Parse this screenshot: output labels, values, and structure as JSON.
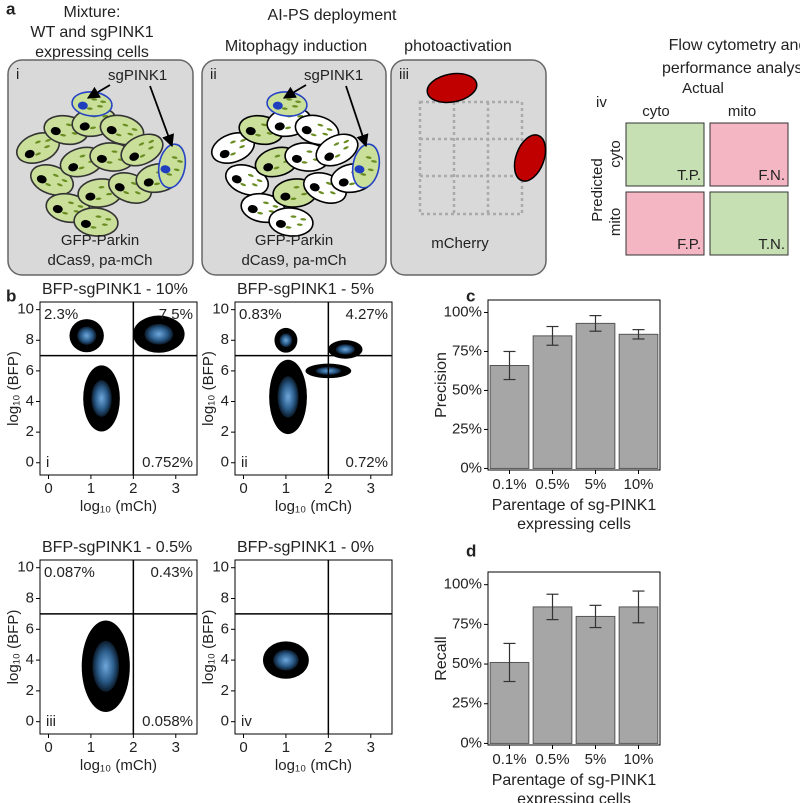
{
  "panel_labels": [
    "a",
    "b",
    "c",
    "d"
  ],
  "panel_a": {
    "title": "AI-PS deployment",
    "steps": [
      {
        "numeral": "i",
        "heading": [
          "Mixture:",
          "WT and sgPINK1",
          "expressing cells"
        ],
        "arrow_label": "sgPINK1",
        "captions": [
          "GFP-Parkin",
          "dCas9, pa-mCh"
        ]
      },
      {
        "numeral": "ii",
        "heading": [
          "Mitophagy induction"
        ],
        "arrow_label": "sgPINK1",
        "captions": [
          "GFP-Parkin",
          "dCas9, pa-mCh"
        ]
      },
      {
        "numeral": "iii",
        "heading": [
          "photoactivation"
        ],
        "captions": [
          "mCherry"
        ]
      },
      {
        "numeral": "iv",
        "heading": [
          "Flow cytometry and",
          "performance analysis"
        ]
      }
    ],
    "matrix": {
      "actual_label": "Actual",
      "predicted_label": "Predicted",
      "columns": [
        "cyto",
        "mito"
      ],
      "rows": [
        "cyto",
        "mito"
      ],
      "cells": [
        [
          "T.P.",
          "F.N."
        ],
        [
          "F.P.",
          "T.N."
        ]
      ]
    }
  },
  "chart_data": [
    {
      "type": "scatter",
      "title": "BFP-sgPINK1 - 10%",
      "xlabel": "log₁₀ (mCh)",
      "ylabel": "log₁₀ (BFP)",
      "xlim": [
        -0.2,
        3.5
      ],
      "ylim": [
        -0.8,
        10.5
      ],
      "xticks": [
        0,
        1,
        2,
        3
      ],
      "yticks": [
        0,
        2,
        4,
        6,
        8,
        10
      ],
      "gates": {
        "x": 2,
        "y": 7
      },
      "clusters": [
        {
          "x": 1.25,
          "y": 4.2,
          "sx": 0.32,
          "sy": 1.6
        },
        {
          "x": 0.9,
          "y": 8.3,
          "sx": 0.3,
          "sy": 0.8
        },
        {
          "x": 2.6,
          "y": 8.4,
          "sx": 0.45,
          "sy": 0.9
        }
      ],
      "annotations": [
        {
          "text": "2.3%",
          "quadrant": "upper-left"
        },
        {
          "text": "7.5%",
          "quadrant": "upper-right"
        },
        {
          "text": "0.752%",
          "quadrant": "lower-right"
        },
        {
          "text": "i",
          "quadrant": "lower-left"
        }
      ]
    },
    {
      "type": "scatter",
      "title": "BFP-sgPINK1 - 5%",
      "xlabel": "log₁₀ (mCh)",
      "ylabel": "log₁₀ (BFP)",
      "xlim": [
        -0.2,
        3.5
      ],
      "ylim": [
        -0.8,
        10.5
      ],
      "xticks": [
        0,
        1,
        2,
        3
      ],
      "yticks": [
        0,
        2,
        4,
        6,
        8,
        10
      ],
      "gates": {
        "x": 2,
        "y": 7
      },
      "clusters": [
        {
          "x": 1.05,
          "y": 4.3,
          "sx": 0.33,
          "sy": 1.8
        },
        {
          "x": 1.0,
          "y": 8.0,
          "sx": 0.2,
          "sy": 0.6
        },
        {
          "x": 2.4,
          "y": 7.4,
          "sx": 0.3,
          "sy": 0.45
        },
        {
          "x": 2.0,
          "y": 6.0,
          "sx": 0.4,
          "sy": 0.35
        }
      ],
      "annotations": [
        {
          "text": "0.83%",
          "quadrant": "upper-left"
        },
        {
          "text": "4.27%",
          "quadrant": "upper-right"
        },
        {
          "text": "0.72%",
          "quadrant": "lower-right"
        },
        {
          "text": "ii",
          "quadrant": "lower-left"
        }
      ]
    },
    {
      "type": "scatter",
      "title": "BFP-sgPINK1 - 0.5%",
      "xlabel": "log₁₀ (mCh)",
      "ylabel": "log₁₀ (BFP)",
      "xlim": [
        -0.2,
        3.5
      ],
      "ylim": [
        -0.8,
        10.5
      ],
      "xticks": [
        0,
        1,
        2,
        3
      ],
      "yticks": [
        0,
        2,
        4,
        6,
        8,
        10
      ],
      "gates": {
        "x": 2,
        "y": 7
      },
      "clusters": [
        {
          "x": 1.35,
          "y": 3.6,
          "sx": 0.42,
          "sy": 2.2
        }
      ],
      "annotations": [
        {
          "text": "0.087%",
          "quadrant": "upper-left"
        },
        {
          "text": "0.43%",
          "quadrant": "upper-right"
        },
        {
          "text": "0.058%",
          "quadrant": "lower-right"
        },
        {
          "text": "iii",
          "quadrant": "lower-left"
        }
      ]
    },
    {
      "type": "scatter",
      "title": "BFP-sgPINK1 - 0%",
      "xlabel": "log₁₀ (mCh)",
      "ylabel": "log₁₀ (BFP)",
      "xlim": [
        -0.2,
        3.5
      ],
      "ylim": [
        -0.8,
        10.5
      ],
      "xticks": [
        0,
        1,
        2,
        3
      ],
      "yticks": [
        0,
        2,
        4,
        6,
        8,
        10
      ],
      "gates": {
        "x": 2,
        "y": 7
      },
      "clusters": [
        {
          "x": 1.0,
          "y": 4.0,
          "sx": 0.4,
          "sy": 0.9
        }
      ],
      "annotations": [
        {
          "text": "iv",
          "quadrant": "lower-left"
        }
      ]
    },
    {
      "type": "bar",
      "ylabel": "Precision",
      "xlabel": [
        "Parentage of sg-PINK1",
        "expressing cells"
      ],
      "categories": [
        "0.1%",
        "0.5%",
        "5%",
        "10%"
      ],
      "values": [
        66,
        85,
        93,
        86
      ],
      "errors": [
        9,
        6,
        5,
        3
      ],
      "color": "#a6a6a6",
      "ylim": [
        -1,
        108
      ],
      "yticks": [
        {
          "value": 0,
          "label": "0%"
        },
        {
          "value": 25,
          "label": "25%"
        },
        {
          "value": 50,
          "label": "50%"
        },
        {
          "value": 75,
          "label": "75%"
        },
        {
          "value": 100,
          "label": "100%"
        }
      ]
    },
    {
      "type": "bar",
      "ylabel": "Recall",
      "xlabel": [
        "Parentage of sg-PINK1",
        "expressing cells"
      ],
      "categories": [
        "0.1%",
        "0.5%",
        "5%",
        "10%"
      ],
      "values": [
        51,
        86,
        80,
        86
      ],
      "errors": [
        12,
        8,
        7,
        10
      ],
      "color": "#a6a6a6",
      "ylim": [
        -1,
        108
      ],
      "yticks": [
        {
          "value": 0,
          "label": "0%"
        },
        {
          "value": 25,
          "label": "25%"
        },
        {
          "value": 50,
          "label": "50%"
        },
        {
          "value": 75,
          "label": "75%"
        },
        {
          "value": 100,
          "label": "100%"
        }
      ]
    }
  ]
}
